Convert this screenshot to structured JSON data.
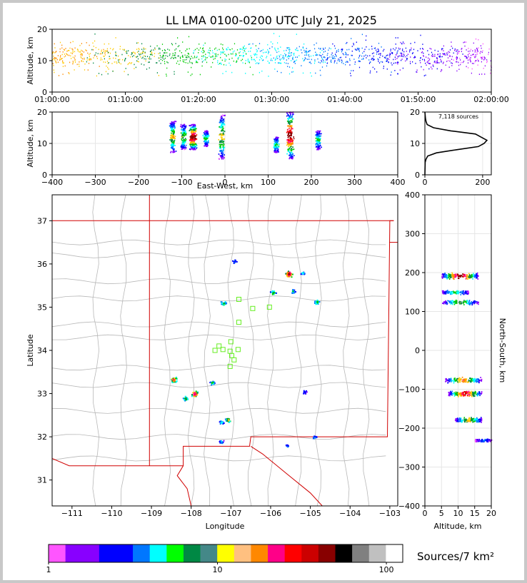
{
  "title": "LL LMA 0100-0200 UTC July 21, 2025",
  "sources_label": "7,118 sources",
  "colorbar_label": "Sources/7 km²",
  "colors": {
    "panel_border": "#000000",
    "state_border": "#d00000",
    "county_border": "#b8b8b8",
    "station": "#66ee22"
  },
  "chart_data": [
    {
      "id": "time_height",
      "type": "scatter",
      "xlabel": "",
      "ylabel": "Altitude, km",
      "x_tick_labels": [
        "01:00:00",
        "01:10:00",
        "01:20:00",
        "01:30:00",
        "01:40:00",
        "01:50:00",
        "02:00:00"
      ],
      "xlim": [
        "01:00:00",
        "02:00:00"
      ],
      "ylim": [
        0,
        20
      ],
      "y_ticks": [
        0,
        10,
        20
      ],
      "altitude_band_km": [
        5,
        16
      ],
      "densest_altitude_km": [
        9,
        14
      ]
    },
    {
      "id": "east_west_height",
      "type": "scatter",
      "xlabel": "East-West, km",
      "ylabel": "Altitude, km",
      "xlim": [
        -400,
        400
      ],
      "ylim": [
        0,
        20
      ],
      "x_ticks": [
        -400,
        -300,
        -200,
        -100,
        0,
        100,
        200,
        300,
        400
      ],
      "y_ticks": [
        0,
        10,
        20
      ],
      "clusters": [
        {
          "x": -122,
          "altitude": [
            7,
            17
          ],
          "intensity": 0.6
        },
        {
          "x": -97,
          "altitude": [
            8,
            16
          ],
          "intensity": 0.5
        },
        {
          "x": -75,
          "altitude": [
            8,
            16
          ],
          "intensity": 1.0
        },
        {
          "x": -45,
          "altitude": [
            9,
            14
          ],
          "intensity": 0.4
        },
        {
          "x": -8,
          "altitude": [
            5,
            19
          ],
          "intensity": 0.6
        },
        {
          "x": 118,
          "altitude": [
            7,
            12
          ],
          "intensity": 0.4
        },
        {
          "x": 150,
          "altitude": [
            5,
            20
          ],
          "intensity": 1.0
        },
        {
          "x": 215,
          "altitude": [
            8,
            14
          ],
          "intensity": 0.4
        }
      ]
    },
    {
      "id": "altitude_histogram",
      "type": "line",
      "xlim": [
        0,
        230
      ],
      "ylim": [
        0,
        20
      ],
      "x_ticks": [
        0,
        200
      ],
      "y_ticks": [
        0,
        10,
        20
      ],
      "profile": [
        [
          0,
          0
        ],
        [
          1,
          4
        ],
        [
          4,
          5
        ],
        [
          10,
          6
        ],
        [
          40,
          7
        ],
        [
          110,
          8
        ],
        [
          185,
          9
        ],
        [
          205,
          10
        ],
        [
          215,
          11
        ],
        [
          195,
          12
        ],
        [
          175,
          13
        ],
        [
          90,
          14
        ],
        [
          30,
          15
        ],
        [
          8,
          16
        ],
        [
          4,
          17
        ],
        [
          2,
          18
        ],
        [
          1,
          19
        ],
        [
          0,
          20
        ]
      ]
    },
    {
      "id": "plan_view",
      "type": "scatter",
      "xlabel": "Longitude",
      "ylabel": "Latitude",
      "xlim": [
        -111.5,
        -102.8
      ],
      "ylim": [
        30.4,
        37.6
      ],
      "x_ticks": [
        -111,
        -110,
        -109,
        -108,
        -107,
        -106,
        -105,
        -104,
        -103
      ],
      "y_ticks": [
        31,
        32,
        33,
        34,
        35,
        36,
        37
      ],
      "stations": [
        [
          -106.8,
          35.18
        ],
        [
          -106.45,
          34.97
        ],
        [
          -106.03,
          35.0
        ],
        [
          -106.8,
          34.65
        ],
        [
          -107.0,
          34.2
        ],
        [
          -107.3,
          34.1
        ],
        [
          -107.2,
          34.02
        ],
        [
          -107.4,
          34.0
        ],
        [
          -107.02,
          33.98
        ],
        [
          -106.82,
          34.02
        ],
        [
          -106.98,
          33.88
        ],
        [
          -106.92,
          33.78
        ],
        [
          -107.02,
          33.63
        ]
      ],
      "clusters": [
        {
          "lon": -105.55,
          "lat": 35.78,
          "intensity": 1.0
        },
        {
          "lon": -105.2,
          "lat": 35.8,
          "intensity": 0.3
        },
        {
          "lon": -105.45,
          "lat": 35.38,
          "intensity": 0.35
        },
        {
          "lon": -105.95,
          "lat": 35.35,
          "intensity": 0.5
        },
        {
          "lon": -104.85,
          "lat": 35.13,
          "intensity": 0.45
        },
        {
          "lon": -107.2,
          "lat": 35.1,
          "intensity": 0.5
        },
        {
          "lon": -106.92,
          "lat": 36.07,
          "intensity": 0.2
        },
        {
          "lon": -108.45,
          "lat": 33.33,
          "intensity": 0.8
        },
        {
          "lon": -107.92,
          "lat": 33.0,
          "intensity": 0.9
        },
        {
          "lon": -108.15,
          "lat": 32.9,
          "intensity": 0.5
        },
        {
          "lon": -107.48,
          "lat": 33.26,
          "intensity": 0.4
        },
        {
          "lon": -107.08,
          "lat": 32.4,
          "intensity": 0.6
        },
        {
          "lon": -107.25,
          "lat": 32.35,
          "intensity": 0.35
        },
        {
          "lon": -107.25,
          "lat": 31.9,
          "intensity": 0.3
        },
        {
          "lon": -104.9,
          "lat": 32.0,
          "intensity": 0.2
        },
        {
          "lon": -105.6,
          "lat": 31.8,
          "intensity": 0.2
        },
        {
          "lon": -105.15,
          "lat": 33.05,
          "intensity": 0.15
        }
      ]
    },
    {
      "id": "north_south_height",
      "type": "scatter",
      "xlabel": "Altitude, km",
      "ylabel": "North-South, km",
      "xlim": [
        0,
        20
      ],
      "ylim": [
        -400,
        400
      ],
      "x_ticks": [
        0,
        5,
        10,
        15,
        20
      ],
      "y_ticks": [
        -400,
        -300,
        -200,
        -100,
        0,
        100,
        200,
        300,
        400
      ],
      "clusters": [
        {
          "ns": 193,
          "altitude": [
            5,
            16
          ],
          "intensity": 1.0
        },
        {
          "ns": 150,
          "altitude": [
            5,
            13
          ],
          "intensity": 0.4
        },
        {
          "ns": 125,
          "altitude": [
            5,
            16
          ],
          "intensity": 0.5
        },
        {
          "ns": -75,
          "altitude": [
            6,
            17
          ],
          "intensity": 0.7
        },
        {
          "ns": -110,
          "altitude": [
            7,
            17
          ],
          "intensity": 0.9
        },
        {
          "ns": -178,
          "altitude": [
            9,
            17
          ],
          "intensity": 0.6
        },
        {
          "ns": -230,
          "altitude": [
            15,
            20
          ],
          "intensity": 0.2
        }
      ]
    },
    {
      "id": "colorbar",
      "type": "heatmap",
      "scale": "log",
      "range": [
        1,
        125
      ],
      "tick_labels": [
        "1",
        "10",
        "100"
      ],
      "tick_values": [
        1,
        10,
        100
      ],
      "colors": [
        "#ff55ff",
        "#8800ff",
        "#8800ff",
        "#0000ff",
        "#0000ff",
        "#0077ff",
        "#00ffff",
        "#00ff00",
        "#008844",
        "#448888",
        "#ffff00",
        "#ffc080",
        "#ff8800",
        "#ff0088",
        "#ff0000",
        "#cc0000",
        "#880000",
        "#000000",
        "#808080",
        "#c0c0c0",
        "#ffffff"
      ]
    }
  ]
}
